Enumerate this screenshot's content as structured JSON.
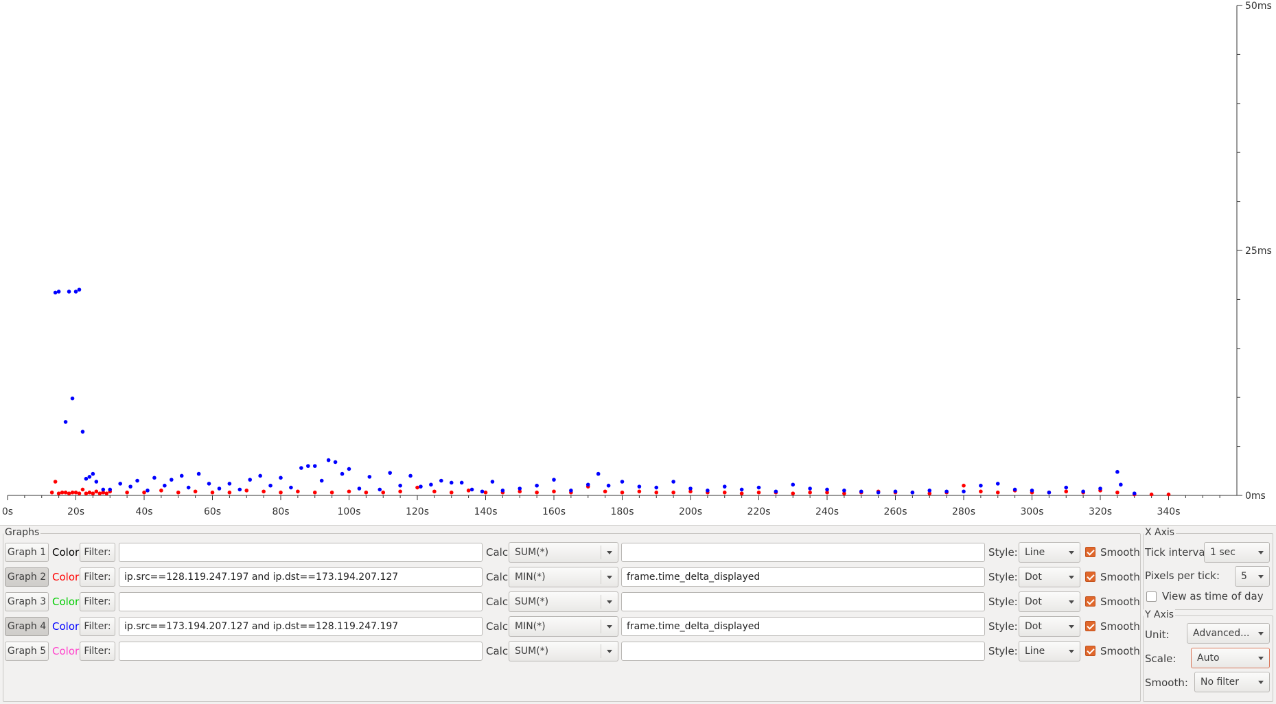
{
  "chart_data": {
    "type": "scatter",
    "xlabel": "",
    "ylabel": "",
    "xlim": [
      0,
      360
    ],
    "ylim": [
      0,
      50
    ],
    "x_ticks": [
      "0s",
      "20s",
      "40s",
      "60s",
      "80s",
      "100s",
      "120s",
      "140s",
      "160s",
      "180s",
      "200s",
      "220s",
      "240s",
      "260s",
      "280s",
      "300s",
      "320s",
      "340s"
    ],
    "y_ticks": [
      "0ms",
      "25ms",
      "50ms"
    ],
    "series": [
      {
        "name": "Graph 2",
        "color": "#ff0000",
        "y_unit": "ms",
        "x": [
          13,
          14,
          15,
          16,
          17,
          18,
          19,
          20,
          21,
          22,
          23,
          24,
          25,
          26,
          27,
          28,
          29,
          30,
          35,
          40,
          45,
          50,
          55,
          60,
          65,
          70,
          75,
          80,
          85,
          90,
          95,
          100,
          105,
          110,
          115,
          120,
          125,
          130,
          135,
          140,
          145,
          150,
          155,
          160,
          165,
          170,
          175,
          180,
          185,
          190,
          195,
          200,
          205,
          210,
          215,
          220,
          225,
          230,
          235,
          240,
          245,
          250,
          255,
          260,
          265,
          270,
          275,
          280,
          285,
          290,
          295,
          300,
          305,
          310,
          315,
          320,
          325,
          330,
          335,
          340
        ],
        "values": [
          0.3,
          1.4,
          0.2,
          0.3,
          0.3,
          0.2,
          0.3,
          0.3,
          0.2,
          0.6,
          0.2,
          0.3,
          0.2,
          0.4,
          0.2,
          0.3,
          0.2,
          0.4,
          0.3,
          0.3,
          0.5,
          0.3,
          0.4,
          0.3,
          0.3,
          0.5,
          0.4,
          0.3,
          0.4,
          0.3,
          0.3,
          0.4,
          0.3,
          0.3,
          0.4,
          0.8,
          0.4,
          0.3,
          0.5,
          0.3,
          0.3,
          0.4,
          0.3,
          0.4,
          0.3,
          0.9,
          0.4,
          0.3,
          0.4,
          0.3,
          0.3,
          0.4,
          0.3,
          0.3,
          0.2,
          0.3,
          0.3,
          0.2,
          0.3,
          0.3,
          0.2,
          0.3,
          0.4,
          0.3,
          0.3,
          0.2,
          0.3,
          1.0,
          0.4,
          0.3,
          0.5,
          0.3,
          0.3,
          0.4,
          0.3,
          0.5,
          0.3,
          0.1,
          0.1,
          0.1
        ]
      },
      {
        "name": "Graph 4",
        "color": "#0000ff",
        "y_unit": "ms",
        "x": [
          14,
          15,
          17,
          18,
          19,
          20,
          21,
          22,
          23,
          24,
          25,
          26,
          28,
          30,
          33,
          36,
          38,
          41,
          43,
          46,
          48,
          51,
          53,
          56,
          59,
          62,
          65,
          68,
          71,
          74,
          77,
          80,
          83,
          86,
          88,
          90,
          92,
          94,
          96,
          98,
          100,
          103,
          106,
          109,
          112,
          115,
          118,
          121,
          124,
          127,
          130,
          133,
          136,
          139,
          142,
          145,
          150,
          155,
          160,
          165,
          170,
          173,
          176,
          180,
          185,
          190,
          195,
          200,
          205,
          210,
          215,
          220,
          225,
          230,
          235,
          240,
          245,
          250,
          255,
          260,
          265,
          270,
          275,
          280,
          285,
          290,
          295,
          300,
          305,
          310,
          315,
          320,
          325,
          326,
          330
        ],
        "values": [
          20.7,
          20.8,
          7.5,
          20.8,
          9.9,
          20.8,
          21.0,
          6.5,
          1.7,
          1.9,
          2.2,
          1.4,
          0.6,
          0.6,
          1.2,
          0.9,
          1.5,
          0.5,
          1.8,
          1.0,
          1.6,
          2.0,
          0.8,
          2.2,
          1.2,
          0.7,
          1.2,
          0.6,
          1.6,
          2.0,
          1.0,
          1.8,
          0.8,
          2.8,
          3.0,
          3.0,
          1.5,
          3.6,
          3.4,
          2.2,
          2.7,
          0.7,
          1.9,
          0.6,
          2.3,
          1.0,
          2.0,
          0.9,
          1.1,
          1.5,
          1.3,
          1.3,
          0.6,
          0.4,
          1.4,
          0.5,
          0.7,
          1.0,
          1.6,
          0.5,
          1.1,
          2.2,
          1.0,
          1.4,
          0.9,
          0.8,
          1.4,
          0.7,
          0.5,
          0.9,
          0.6,
          0.8,
          0.4,
          1.1,
          0.7,
          0.6,
          0.5,
          0.4,
          0.3,
          0.4,
          0.3,
          0.5,
          0.4,
          0.4,
          1.0,
          1.2,
          0.6,
          0.5,
          0.3,
          0.8,
          0.4,
          0.7,
          2.4,
          1.1,
          0.2
        ]
      }
    ]
  },
  "graphs_panel": {
    "title": "Graphs",
    "rows": [
      {
        "button": "Graph 1",
        "color_label": "Color",
        "color": "#000000",
        "filter_label": "Filter:",
        "filter": "",
        "calc_label": "Calc:",
        "calc": "SUM(*)",
        "field": "",
        "style_label": "Style:",
        "style": "Line",
        "smooth_label": "Smooth",
        "smooth": true,
        "pressed": false
      },
      {
        "button": "Graph 2",
        "color_label": "Color",
        "color": "#ff0000",
        "filter_label": "Filter:",
        "filter": "ip.src==128.119.247.197 and ip.dst==173.194.207.127",
        "calc_label": "Calc:",
        "calc": "MIN(*)",
        "field": "frame.time_delta_displayed",
        "style_label": "Style:",
        "style": "Dot",
        "smooth_label": "Smooth",
        "smooth": true,
        "pressed": true
      },
      {
        "button": "Graph 3",
        "color_label": "Color",
        "color": "#00cc00",
        "filter_label": "Filter:",
        "filter": "",
        "calc_label": "Calc:",
        "calc": "SUM(*)",
        "field": "",
        "style_label": "Style:",
        "style": "Dot",
        "smooth_label": "Smooth",
        "smooth": true,
        "pressed": false
      },
      {
        "button": "Graph 4",
        "color_label": "Color",
        "color": "#0000ff",
        "filter_label": "Filter:",
        "filter": "ip.src==173.194.207.127 and ip.dst==128.119.247.197",
        "calc_label": "Calc:",
        "calc": "MIN(*)",
        "field": "frame.time_delta_displayed",
        "style_label": "Style:",
        "style": "Dot",
        "smooth_label": "Smooth",
        "smooth": true,
        "pressed": true
      },
      {
        "button": "Graph 5",
        "color_label": "Color",
        "color": "#ff44cc",
        "filter_label": "Filter:",
        "filter": "",
        "calc_label": "Calc:",
        "calc": "SUM(*)",
        "field": "",
        "style_label": "Style:",
        "style": "Line",
        "smooth_label": "Smooth",
        "smooth": true,
        "pressed": false
      }
    ]
  },
  "x_axis_panel": {
    "title": "X Axis",
    "tick_interval_label": "Tick interval:",
    "tick_interval": "1 sec",
    "pixels_per_tick_label": "Pixels per tick:",
    "pixels_per_tick": "5",
    "view_time_of_day_label": "View as time of day",
    "view_time_of_day": false
  },
  "y_axis_panel": {
    "title": "Y Axis",
    "unit_label": "Unit:",
    "unit": "Advanced...",
    "scale_label": "Scale:",
    "scale": "Auto",
    "smooth_label": "Smooth:",
    "smooth": "No filter"
  }
}
